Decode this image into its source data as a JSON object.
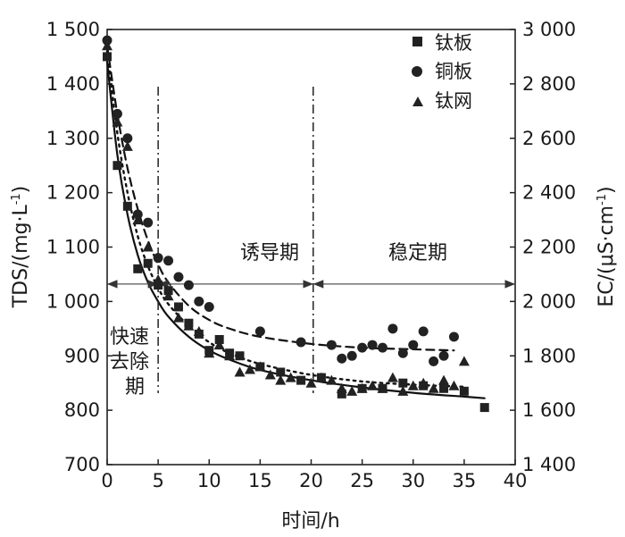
{
  "chart_data": {
    "type": "scatter",
    "title": "",
    "xlabel": "时间/h",
    "ylabel_left": "TDS/(mg·L",
    "ylabel_left_sup": "-1",
    "ylabel_left_close": ")",
    "ylabel_right": "EC/(μS·cm",
    "ylabel_right_sup": "-1",
    "ylabel_right_close": ")",
    "xlim": [
      0,
      40
    ],
    "ylim_left": [
      700,
      1500
    ],
    "ylim_right": [
      1400,
      3000
    ],
    "x_ticks": [
      0,
      5,
      10,
      15,
      20,
      25,
      30,
      35,
      40
    ],
    "x_tick_labels": [
      "0",
      "5",
      "10",
      "15",
      "20",
      "25",
      "30",
      "35",
      "40"
    ],
    "y_left_ticks": [
      700,
      800,
      900,
      1000,
      1100,
      1200,
      1300,
      1400,
      1500
    ],
    "y_left_tick_labels": [
      "700",
      "800",
      "900",
      "1 000",
      "1 100",
      "1 200",
      "1 300",
      "1 400",
      "1 500"
    ],
    "y_right_ticks": [
      1400,
      1600,
      1800,
      2000,
      2200,
      2400,
      2600,
      2800,
      3000
    ],
    "y_right_tick_labels": [
      "1 400",
      "1 600",
      "1 800",
      "2 000",
      "2 200",
      "2 400",
      "2 600",
      "2 800",
      "3 000"
    ],
    "grid": false,
    "legend_position": "top-right",
    "series": [
      {
        "name": "钛板",
        "marker": "square",
        "fit_line": "solid",
        "points": [
          [
            0,
            1450
          ],
          [
            1,
            1250
          ],
          [
            2,
            1175
          ],
          [
            3,
            1060
          ],
          [
            4,
            1070
          ],
          [
            5,
            1030
          ],
          [
            6,
            1020
          ],
          [
            7,
            990
          ],
          [
            8,
            960
          ],
          [
            9,
            940
          ],
          [
            10,
            910
          ],
          [
            11,
            930
          ],
          [
            12,
            905
          ],
          [
            13,
            900
          ],
          [
            15,
            880
          ],
          [
            17,
            870
          ],
          [
            19,
            855
          ],
          [
            21,
            860
          ],
          [
            23,
            830
          ],
          [
            25,
            840
          ],
          [
            27,
            840
          ],
          [
            29,
            850
          ],
          [
            31,
            845
          ],
          [
            33,
            840
          ],
          [
            35,
            835
          ],
          [
            37,
            805
          ]
        ],
        "fit": [
          [
            0,
            1440
          ],
          [
            1,
            1270
          ],
          [
            2,
            1160
          ],
          [
            3,
            1085
          ],
          [
            4,
            1035
          ],
          [
            5,
            1000
          ],
          [
            6,
            972
          ],
          [
            8,
            935
          ],
          [
            10,
            910
          ],
          [
            12,
            893
          ],
          [
            15,
            874
          ],
          [
            20,
            855
          ],
          [
            25,
            842
          ],
          [
            30,
            832
          ],
          [
            35,
            825
          ],
          [
            37,
            822
          ]
        ]
      },
      {
        "name": "铜板",
        "marker": "circle",
        "fit_line": "dashed",
        "points": [
          [
            0,
            1480
          ],
          [
            1,
            1345
          ],
          [
            2,
            1300
          ],
          [
            3,
            1160
          ],
          [
            4,
            1145
          ],
          [
            5,
            1080
          ],
          [
            6,
            1075
          ],
          [
            7,
            1045
          ],
          [
            8,
            1030
          ],
          [
            9,
            1000
          ],
          [
            10,
            990
          ],
          [
            15,
            945
          ],
          [
            19,
            925
          ],
          [
            22,
            920
          ],
          [
            23,
            895
          ],
          [
            24,
            900
          ],
          [
            25,
            915
          ],
          [
            26,
            920
          ],
          [
            27,
            915
          ],
          [
            28,
            950
          ],
          [
            29,
            905
          ],
          [
            30,
            920
          ],
          [
            31,
            945
          ],
          [
            32,
            890
          ],
          [
            33,
            900
          ],
          [
            34,
            935
          ]
        ],
        "fit": [
          [
            0,
            1470
          ],
          [
            1,
            1345
          ],
          [
            2,
            1245
          ],
          [
            3,
            1170
          ],
          [
            4,
            1112
          ],
          [
            5,
            1068
          ],
          [
            6,
            1035
          ],
          [
            8,
            992
          ],
          [
            10,
            966
          ],
          [
            12,
            950
          ],
          [
            15,
            935
          ],
          [
            20,
            922
          ],
          [
            25,
            915
          ],
          [
            30,
            912
          ],
          [
            34,
            910
          ]
        ]
      },
      {
        "name": "钛网",
        "marker": "triangle",
        "fit_line": "dotted",
        "points": [
          [
            0,
            1470
          ],
          [
            1,
            1330
          ],
          [
            2,
            1285
          ],
          [
            3,
            1150
          ],
          [
            4,
            1100
          ],
          [
            5,
            1040
          ],
          [
            6,
            1010
          ],
          [
            7,
            970
          ],
          [
            8,
            955
          ],
          [
            9,
            945
          ],
          [
            10,
            905
          ],
          [
            11,
            920
          ],
          [
            12,
            900
          ],
          [
            13,
            870
          ],
          [
            14,
            875
          ],
          [
            15,
            880
          ],
          [
            16,
            865
          ],
          [
            17,
            855
          ],
          [
            18,
            860
          ],
          [
            20,
            850
          ],
          [
            21,
            860
          ],
          [
            22,
            855
          ],
          [
            23,
            840
          ],
          [
            24,
            835
          ],
          [
            25,
            840
          ],
          [
            26,
            845
          ],
          [
            27,
            840
          ],
          [
            28,
            860
          ],
          [
            29,
            835
          ],
          [
            30,
            845
          ],
          [
            31,
            850
          ],
          [
            32,
            840
          ],
          [
            33,
            855
          ],
          [
            34,
            845
          ],
          [
            35,
            890
          ]
        ],
        "fit": [
          [
            0,
            1460
          ],
          [
            1,
            1310
          ],
          [
            2,
            1200
          ],
          [
            3,
            1120
          ],
          [
            4,
            1065
          ],
          [
            5,
            1025
          ],
          [
            6,
            995
          ],
          [
            8,
            955
          ],
          [
            10,
            925
          ],
          [
            12,
            905
          ],
          [
            15,
            885
          ],
          [
            20,
            865
          ],
          [
            25,
            853
          ],
          [
            30,
            847
          ],
          [
            35,
            843
          ]
        ]
      }
    ],
    "phases": {
      "arrow_y": 1032,
      "boundaries": [
        5,
        20.2
      ],
      "labels": [
        {
          "text_lines": [
            "快速",
            "去除",
            "期"
          ],
          "x_range": [
            0,
            5
          ]
        },
        {
          "text_lines": [
            "诱导期"
          ],
          "x_range": [
            5,
            20.2
          ]
        },
        {
          "text_lines": [
            "稳定期"
          ],
          "x_range": [
            20.2,
            40
          ]
        }
      ]
    }
  }
}
